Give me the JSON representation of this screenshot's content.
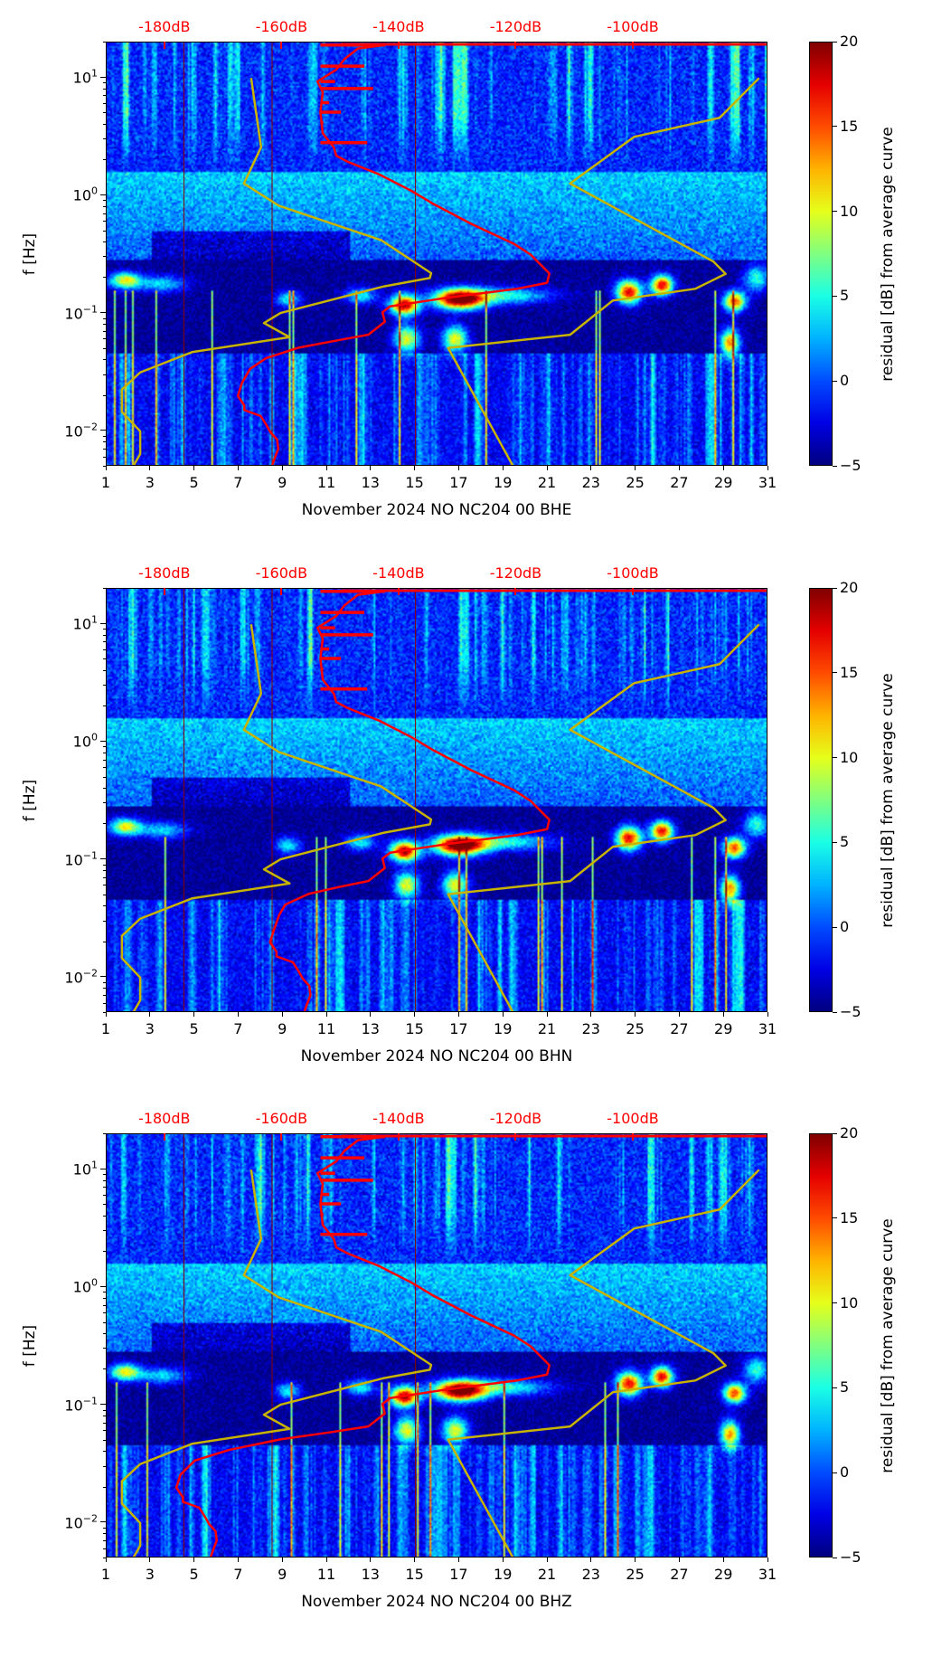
{
  "chart_data": {
    "type": "heatmap",
    "x": {
      "ticks": [
        "1",
        "3",
        "5",
        "7",
        "9",
        "11",
        "13",
        "15",
        "17",
        "19",
        "21",
        "23",
        "25",
        "27",
        "29",
        "31"
      ],
      "range": [
        1,
        31
      ]
    },
    "y": {
      "label": "f [Hz]",
      "scale": "log",
      "range": [
        0.005,
        20
      ],
      "ticks": [
        {
          "base": "10",
          "exp": "1",
          "value": 10
        },
        {
          "base": "10",
          "exp": "0",
          "value": 1
        },
        {
          "base": "10",
          "exp": "−1",
          "value": 0.1
        },
        {
          "base": "10",
          "exp": "−2",
          "value": 0.01
        }
      ]
    },
    "top_axis": {
      "color": "#ff0000",
      "range_db": [
        -190,
        -77
      ],
      "ticks": [
        {
          "label": "-180dB",
          "value": -180
        },
        {
          "label": "-160dB",
          "value": -160
        },
        {
          "label": "-140dB",
          "value": -140
        },
        {
          "label": "-120dB",
          "value": -120
        },
        {
          "label": "-100dB",
          "value": -100
        }
      ]
    },
    "colorbar": {
      "label": "residual [dB] from average curve",
      "range": [
        -5,
        20
      ],
      "colormap": "jet",
      "ticks": [
        "20",
        "15",
        "10",
        "5",
        "0",
        "−5"
      ],
      "tick_values": [
        20,
        15,
        10,
        5,
        0,
        -5
      ]
    },
    "noise_model_low": {
      "color": "#c8b400",
      "points_day_freq": [
        [
          7.55,
          10
        ],
        [
          8.0,
          2.58
        ],
        [
          7.22,
          1.27
        ],
        [
          8.82,
          0.82
        ],
        [
          13.44,
          0.42
        ],
        [
          15.71,
          0.22
        ],
        [
          15.65,
          0.2
        ],
        [
          13.58,
          0.17
        ],
        [
          8.88,
          0.101
        ],
        [
          8.13,
          0.083
        ],
        [
          9.29,
          0.063
        ],
        [
          4.87,
          0.047
        ],
        [
          2.52,
          0.0316
        ],
        [
          1.69,
          0.0226
        ],
        [
          1.69,
          0.0146
        ],
        [
          2.52,
          0.01
        ],
        [
          2.52,
          0.0064
        ],
        [
          2.19,
          0.005
        ]
      ]
    },
    "noise_model_high": {
      "color": "#c8b400",
      "points_day_freq": [
        [
          30.58,
          10
        ],
        [
          28.79,
          4.59
        ],
        [
          24.91,
          3.16
        ],
        [
          22.01,
          1.27
        ],
        [
          28.51,
          0.276
        ],
        [
          29.06,
          0.217
        ],
        [
          27.68,
          0.162
        ],
        [
          23.95,
          0.129
        ],
        [
          22.01,
          0.066
        ],
        [
          16.48,
          0.051
        ],
        [
          19.44,
          0.005
        ]
      ]
    },
    "average_curve": {
      "color": "#ff0000",
      "points_db_log10f": [
        [
          -142.5,
          1.28
        ],
        [
          -147.1,
          1.25
        ],
        [
          -149.4,
          1.16
        ],
        [
          -150.8,
          1.07
        ],
        [
          -154.0,
          0.97
        ],
        [
          -153.1,
          0.88
        ],
        [
          -153.5,
          0.71
        ],
        [
          -153.1,
          0.53
        ],
        [
          -151.2,
          0.41
        ],
        [
          -150.8,
          0.34
        ],
        [
          -148.9,
          0.29
        ],
        [
          -143.4,
          0.18
        ],
        [
          -137.9,
          0.04
        ],
        [
          -134.2,
          -0.07
        ],
        [
          -127.7,
          -0.24
        ],
        [
          -120.4,
          -0.41
        ],
        [
          -117.6,
          -0.5
        ],
        [
          -114.4,
          -0.66
        ],
        [
          -114.8,
          -0.74
        ],
        [
          -119.9,
          -0.79
        ],
        [
          -132.4,
          -0.87
        ],
        [
          -141.6,
          -0.94
        ],
        [
          -142.9,
          -0.99
        ],
        [
          -142.5,
          -1.07
        ],
        [
          -145.3,
          -1.18
        ],
        [
          -150.8,
          -1.23
        ],
        [
          -157.2,
          -1.29
        ],
        [
          -162.8,
          -1.38
        ],
        [
          -165.5,
          -1.47
        ],
        [
          -166.9,
          -1.59
        ],
        [
          -167.6,
          -1.7
        ],
        [
          -166.5,
          -1.78
        ],
        [
          -166.5,
          -1.82
        ],
        [
          -163.7,
          -1.87
        ],
        [
          -162.8,
          -1.94
        ],
        [
          -162.0,
          -2.01
        ],
        [
          -160.9,
          -2.07
        ],
        [
          -160.7,
          -2.15
        ],
        [
          -161.4,
          -2.24
        ],
        [
          -161.8,
          -2.3
        ]
      ],
      "spikes_db_log10f": [
        [
          -142.5,
          1.28
        ],
        [
          -146.0,
          1.1
        ],
        [
          -151.0,
          0.97
        ],
        [
          -144.5,
          0.91
        ],
        [
          -152.0,
          0.79
        ],
        [
          -150.0,
          0.71
        ],
        [
          -153.0,
          0.62
        ],
        [
          -145.5,
          0.45
        ]
      ]
    },
    "panels": [
      {
        "title": "November 2024 NO NC204 00 BHE",
        "low_freq_offset_db": 0
      },
      {
        "title": "November 2024 NO NC204 00 BHN",
        "low_freq_offset_db": 5.5
      },
      {
        "title": "November 2024 NO NC204 00 BHZ",
        "low_freq_offset_db": -10.5
      }
    ]
  }
}
